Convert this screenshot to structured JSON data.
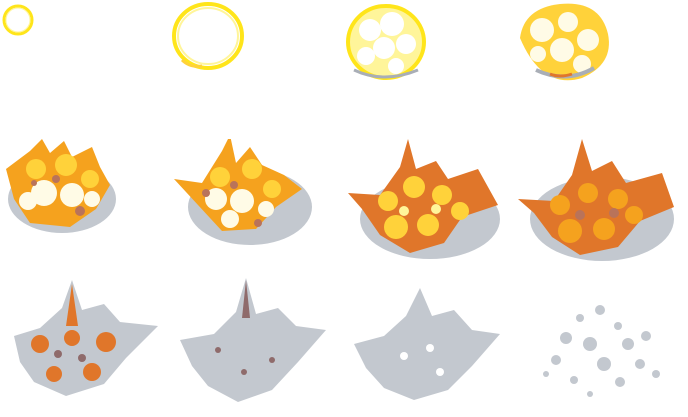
{
  "sprite_sheet": {
    "columns": 4,
    "rows": 3,
    "frame_count": 12
  },
  "palette": {
    "outline_yellow": "#ffe51a",
    "light_yellow": "#fff59a",
    "hot_white": "#fffbe6",
    "yellow": "#ffd23a",
    "orange": "#f5a21e",
    "dark_orange": "#e0762a",
    "burnt": "#b9735a",
    "smoke": "#c3c8cf",
    "smoke_dark": "#a9aeb6",
    "ember": "#8f6b6b"
  }
}
